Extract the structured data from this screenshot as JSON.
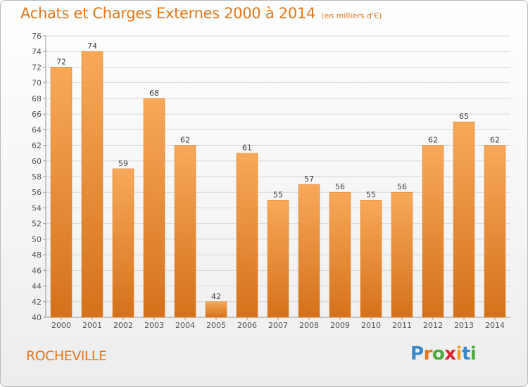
{
  "header": {
    "title": "Achats et Charges Externes 2000 à 2014",
    "unit": "(en milliers d'€)"
  },
  "location": {
    "name": "ROCHEVILLE"
  },
  "brand": {
    "name": "Proxiti",
    "letter_colors": [
      "#3b87c6",
      "#e4761b",
      "#4aaa3c",
      "#d8262e",
      "#f0a11c",
      "#3b87c6",
      "#4aaa3c"
    ]
  },
  "colors": {
    "title": "#e4761b",
    "bar_top": "#f7a959",
    "bar_bottom": "#d5711b",
    "bar_edge": "#e0862e",
    "gridline": "#d6d6d6",
    "tick_text": "#555555"
  },
  "chart_data": {
    "type": "bar",
    "title": "Achats et Charges Externes 2000 à 2014",
    "categories": [
      "2000",
      "2001",
      "2002",
      "2003",
      "2004",
      "2005",
      "2006",
      "2007",
      "2008",
      "2009",
      "2010",
      "2011",
      "2012",
      "2013",
      "2014"
    ],
    "values": [
      72,
      74,
      59,
      68,
      62,
      42,
      61,
      55,
      57,
      56,
      55,
      56,
      62,
      65,
      62
    ],
    "ylim": [
      40,
      76
    ],
    "yticks": [
      40,
      42,
      44,
      46,
      48,
      50,
      52,
      54,
      56,
      58,
      60,
      62,
      64,
      66,
      68,
      70,
      72,
      74,
      76
    ],
    "xlabel": "",
    "ylabel": "",
    "grid": true,
    "data_labels": true
  }
}
